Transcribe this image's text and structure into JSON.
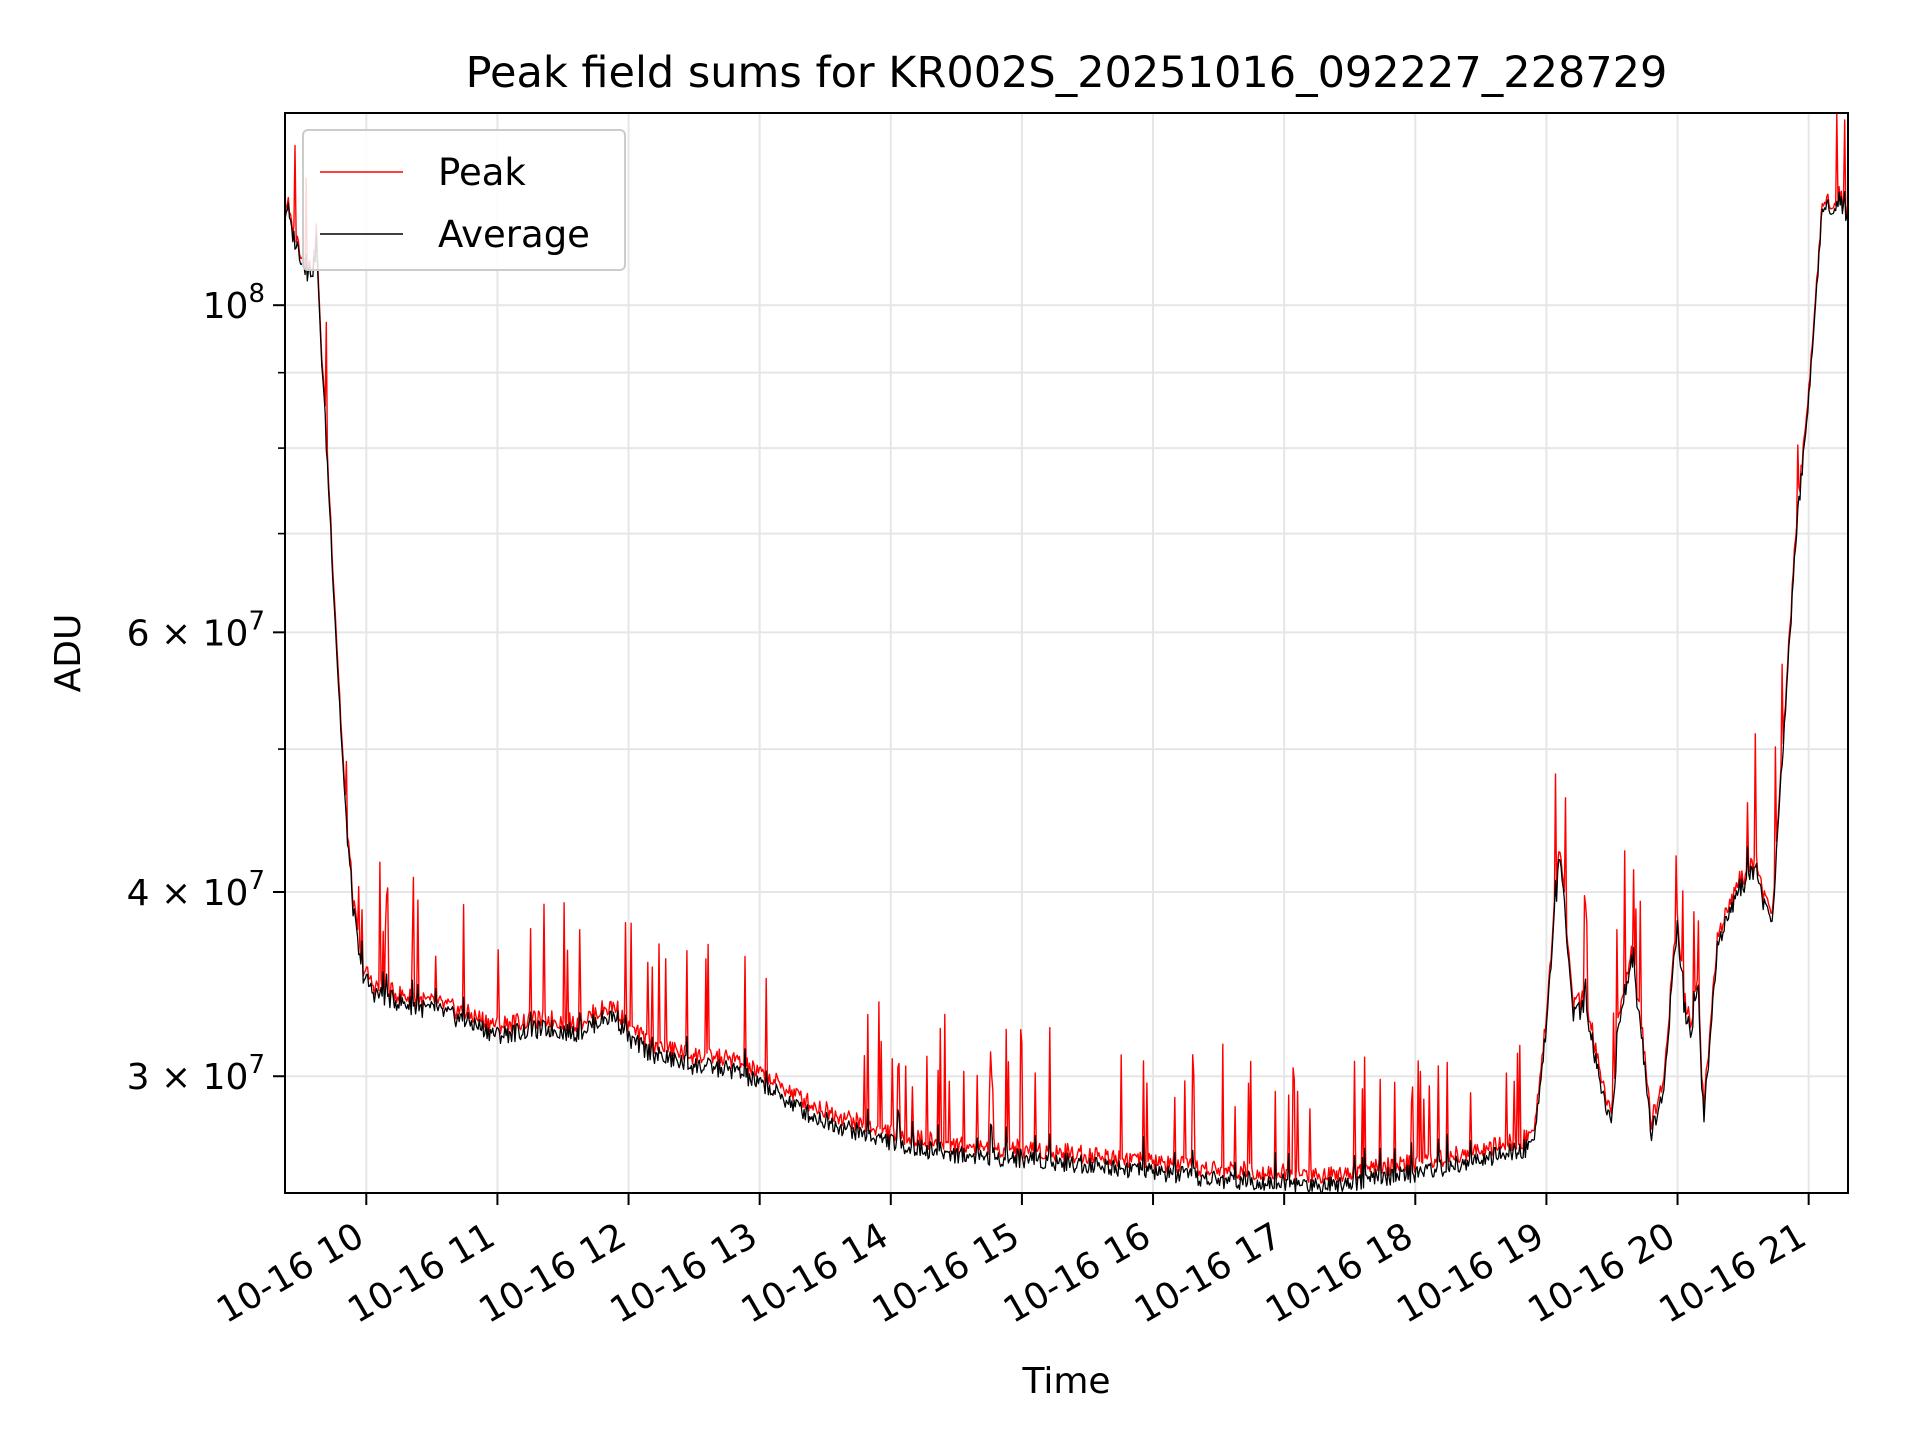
{
  "chart_data": {
    "type": "line",
    "title": "Peak field sums for KR002S_20251016_092227_228729",
    "xlabel": "Time",
    "ylabel": "ADU",
    "yscale": "log",
    "xlim": [
      9.38,
      21.3
    ],
    "ylim": [
      25000000.0,
      135000000.0
    ],
    "grid": true,
    "legend_position": "top-left",
    "x_ticks": [
      {
        "value": 10,
        "label": "10-16 10"
      },
      {
        "value": 11,
        "label": "10-16 11"
      },
      {
        "value": 12,
        "label": "10-16 12"
      },
      {
        "value": 13,
        "label": "10-16 13"
      },
      {
        "value": 14,
        "label": "10-16 14"
      },
      {
        "value": 15,
        "label": "10-16 15"
      },
      {
        "value": 16,
        "label": "10-16 16"
      },
      {
        "value": 17,
        "label": "10-16 17"
      },
      {
        "value": 18,
        "label": "10-16 18"
      },
      {
        "value": 19,
        "label": "10-16 19"
      },
      {
        "value": 20,
        "label": "10-16 20"
      },
      {
        "value": 21,
        "label": "10-16 21"
      }
    ],
    "y_major_ticks": [
      {
        "value": 30000000,
        "mantissa": "3",
        "multiplier": "×",
        "base": "10",
        "exponent": "7"
      },
      {
        "value": 40000000,
        "mantissa": "4",
        "multiplier": "×",
        "base": "10",
        "exponent": "7"
      },
      {
        "value": 60000000,
        "mantissa": "6",
        "multiplier": "×",
        "base": "10",
        "exponent": "7"
      },
      {
        "value": 100000000,
        "mantissa": "",
        "multiplier": "",
        "base": "10",
        "exponent": "8"
      }
    ],
    "y_minor_ticks": [
      50000000,
      70000000,
      80000000,
      90000000
    ],
    "series": [
      {
        "name": "Peak",
        "color": "#ff0000",
        "x": [
          9.38,
          9.4,
          9.42,
          9.45,
          9.5,
          9.55,
          9.6,
          9.62,
          9.64,
          9.67,
          9.72,
          9.78,
          9.84,
          9.9,
          9.96,
          10.05,
          10.2,
          10.4,
          10.6,
          10.8,
          11.0,
          11.2,
          11.4,
          11.6,
          11.8,
          11.9,
          12.0,
          12.2,
          12.5,
          12.8,
          13.1,
          13.4,
          13.8,
          14.2,
          14.6,
          15.0,
          15.4,
          15.8,
          16.2,
          16.5,
          16.8,
          17.2,
          17.6,
          18.0,
          18.4,
          18.8,
          18.9,
          19.0,
          19.05,
          19.1,
          19.15,
          19.2,
          19.3,
          19.4,
          19.5,
          19.55,
          19.65,
          19.75,
          19.8,
          19.9,
          19.95,
          20.0,
          20.05,
          20.1,
          20.15,
          20.2,
          20.3,
          20.45,
          20.6,
          20.65,
          20.72,
          20.8,
          20.9,
          21.0,
          21.05,
          21.1,
          21.15,
          21.25,
          21.28,
          21.3
        ],
        "values": [
          116000000,
          118000000,
          114000000,
          112000000,
          109000000,
          106000000,
          107000000,
          113000000,
          100000000,
          90000000,
          74000000,
          58000000,
          46000000,
          39500000,
          35800000,
          34600000,
          34200000,
          33800000,
          33500000,
          33000000,
          32500000,
          32700000,
          32800000,
          32600000,
          33300000,
          33500000,
          32300000,
          31500000,
          31000000,
          30800000,
          29800000,
          28700000,
          27800000,
          27200000,
          26900000,
          26800000,
          26600000,
          26400000,
          26100000,
          25900000,
          25900000,
          25700000,
          25900000,
          26200000,
          26600000,
          27100000,
          27400000,
          33000000,
          38000000,
          42500000,
          38500000,
          33500000,
          34000000,
          30500000,
          28200000,
          33000000,
          36800000,
          31000000,
          28000000,
          30000000,
          34500000,
          38500000,
          34000000,
          32500000,
          35000000,
          28500000,
          37000000,
          40500000,
          42000000,
          40000000,
          38500000,
          50000000,
          70000000,
          88000000,
          100000000,
          116000000,
          117500000,
          119000000,
          115000000,
          116000000
        ]
      },
      {
        "name": "Average",
        "color": "#000000",
        "x": [
          9.38,
          9.4,
          9.42,
          9.45,
          9.5,
          9.55,
          9.6,
          9.62,
          9.64,
          9.67,
          9.72,
          9.78,
          9.84,
          9.9,
          9.96,
          10.05,
          10.2,
          10.4,
          10.6,
          10.8,
          11.0,
          11.2,
          11.4,
          11.6,
          11.8,
          11.9,
          12.0,
          12.2,
          12.5,
          12.8,
          13.1,
          13.4,
          13.8,
          14.2,
          14.6,
          15.0,
          15.4,
          15.8,
          16.2,
          16.5,
          16.8,
          17.2,
          17.6,
          18.0,
          18.4,
          18.8,
          18.9,
          19.0,
          19.05,
          19.1,
          19.15,
          19.2,
          19.3,
          19.4,
          19.5,
          19.55,
          19.65,
          19.75,
          19.8,
          19.9,
          19.95,
          20.0,
          20.05,
          20.1,
          20.15,
          20.2,
          20.3,
          20.45,
          20.6,
          20.65,
          20.72,
          20.8,
          20.9,
          21.0,
          21.05,
          21.1,
          21.15,
          21.25,
          21.28,
          21.3
        ],
        "values": [
          115000000,
          117000000,
          113000000,
          111000000,
          108000000,
          105000000,
          106000000,
          111000000,
          99000000,
          89000000,
          73000000,
          57000000,
          45500000,
          39000000,
          35400000,
          34200000,
          33800000,
          33400000,
          33100000,
          32600000,
          32000000,
          32200000,
          32300000,
          32100000,
          32800000,
          33000000,
          31800000,
          31000000,
          30500000,
          30300000,
          29300000,
          28200000,
          27400000,
          26800000,
          26500000,
          26400000,
          26200000,
          26000000,
          25700000,
          25500000,
          25500000,
          25300000,
          25500000,
          25800000,
          26200000,
          26700000,
          27000000,
          32500000,
          37500000,
          42000000,
          38000000,
          33000000,
          33500000,
          30000000,
          27800000,
          32500000,
          36300000,
          30500000,
          27500000,
          29500000,
          34000000,
          38000000,
          33500000,
          32000000,
          34500000,
          28000000,
          36500000,
          40000000,
          41500000,
          39500000,
          38000000,
          49500000,
          69000000,
          87000000,
          99000000,
          115000000,
          116500000,
          118000000,
          114000000,
          115000000
        ]
      }
    ]
  }
}
